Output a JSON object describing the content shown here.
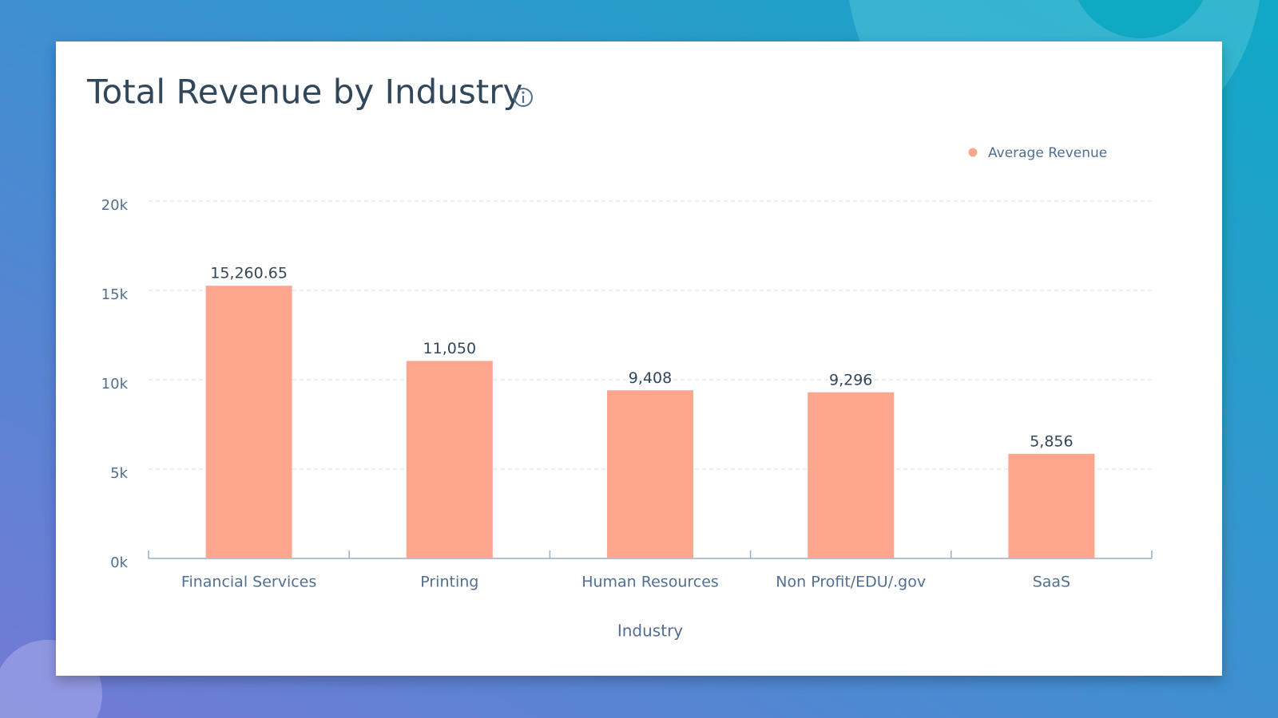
{
  "chart_data": {
    "type": "bar",
    "title": "Total Revenue by Industry",
    "x_label": "Industry",
    "categories": [
      "Financial Services",
      "Printing",
      "Human Resources",
      "Non Profit/EDU/.gov",
      "SaaS"
    ],
    "series": [
      {
        "name": "Average Revenue",
        "color": "#fea58e",
        "values": [
          15260.65,
          11050,
          9408,
          9296,
          5856
        ],
        "value_labels": [
          "15,260.65",
          "11,050",
          "9,408",
          "9,296",
          "5,856"
        ]
      }
    ],
    "ylim": [
      0,
      20000
    ],
    "yticks": [
      {
        "value": 0,
        "label": "0k"
      },
      {
        "value": 5000,
        "label": "5k"
      },
      {
        "value": 10000,
        "label": "10k"
      },
      {
        "value": 15000,
        "label": "15k"
      },
      {
        "value": 20000,
        "label": "20k"
      }
    ],
    "grid": true,
    "legend": "top-right"
  }
}
